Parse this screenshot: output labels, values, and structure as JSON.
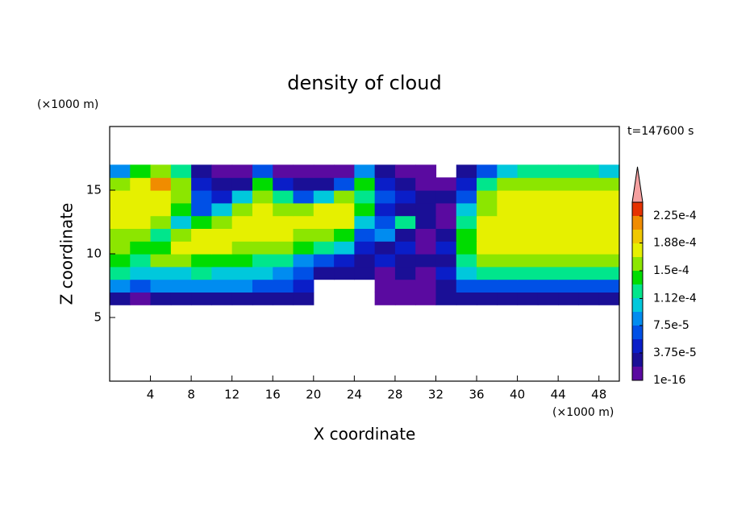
{
  "chart_data": {
    "type": "contour",
    "title": "density of cloud",
    "x_label": "X coordinate",
    "y_label": "Z coordinate",
    "x_unit": "(×1000 m)",
    "y_unit": "(×1000 m)",
    "annotation": "t=147600 s",
    "xlim": [
      0,
      50
    ],
    "ylim": [
      0,
      20
    ],
    "xticks": [
      4,
      8,
      12,
      16,
      20,
      24,
      28,
      32,
      36,
      40,
      44,
      48
    ],
    "yticks": [
      5,
      10,
      15
    ],
    "x": [
      1,
      3,
      5,
      7,
      9,
      11,
      13,
      15,
      17,
      19,
      21,
      23,
      25,
      27,
      29,
      31,
      33,
      35,
      37,
      39,
      41,
      43,
      45,
      47,
      49
    ],
    "y": [
      6.5,
      7.5,
      8.5,
      9.5,
      10.5,
      11.5,
      12.5,
      13.5,
      14.5,
      15.5,
      16.5
    ],
    "values": [
      [
        2.5e-05,
        1e-05,
        2.5e-05,
        2.5e-05,
        2.5e-05,
        2.5e-05,
        2.5e-05,
        2.5e-05,
        2.5e-05,
        2.5e-05,
        null,
        null,
        null,
        1e-05,
        1e-05,
        1e-05,
        2.5e-05,
        2.5e-05,
        2.5e-05,
        2.5e-05,
        2.5e-05,
        2.5e-05,
        2.5e-05,
        2.5e-05,
        2.5e-05
      ],
      [
        8e-05,
        6e-05,
        8e-05,
        8e-05,
        8e-05,
        8e-05,
        8e-05,
        6e-05,
        6e-05,
        4.5e-05,
        null,
        null,
        null,
        1e-05,
        1e-05,
        1e-05,
        2.5e-05,
        6e-05,
        6e-05,
        6e-05,
        6e-05,
        6e-05,
        6e-05,
        6e-05,
        6e-05
      ],
      [
        0.00012,
        0.0001,
        0.0001,
        0.0001,
        0.00012,
        0.0001,
        0.0001,
        0.0001,
        8e-05,
        6e-05,
        2.5e-05,
        2.5e-05,
        2.5e-05,
        1e-05,
        2.5e-05,
        1e-05,
        4.5e-05,
        0.0001,
        0.00012,
        0.00012,
        0.00012,
        0.00012,
        0.00012,
        0.00012,
        0.00012
      ],
      [
        0.00014,
        0.00012,
        0.00016,
        0.00016,
        0.00014,
        0.00014,
        0.00014,
        0.00012,
        0.00012,
        8e-05,
        6e-05,
        4.5e-05,
        2.5e-05,
        4.5e-05,
        2.5e-05,
        2.5e-05,
        2.5e-05,
        0.00012,
        0.00016,
        0.00016,
        0.00016,
        0.00016,
        0.00016,
        0.00016,
        0.00016
      ],
      [
        0.00016,
        0.00014,
        0.00014,
        0.000175,
        0.000175,
        0.000175,
        0.00016,
        0.00016,
        0.00016,
        0.00014,
        0.00012,
        0.0001,
        4.5e-05,
        2.5e-05,
        4.5e-05,
        1e-05,
        4.5e-05,
        0.00014,
        0.000175,
        0.000175,
        0.000175,
        0.000175,
        0.000175,
        0.000175,
        0.000175
      ],
      [
        0.00016,
        0.00016,
        0.00012,
        0.00016,
        0.000175,
        0.000175,
        0.000175,
        0.000175,
        0.000175,
        0.00016,
        0.00016,
        0.00014,
        6e-05,
        8e-05,
        2.5e-05,
        1e-05,
        2.5e-05,
        0.00014,
        0.000175,
        0.000175,
        0.000175,
        0.000175,
        0.000175,
        0.000175,
        0.000175
      ],
      [
        0.000175,
        0.000175,
        0.00016,
        0.0001,
        0.00014,
        0.00016,
        0.000175,
        0.000175,
        0.000175,
        0.000175,
        0.000175,
        0.000175,
        0.0001,
        6e-05,
        0.00012,
        2.5e-05,
        1e-05,
        0.00012,
        0.000175,
        0.000175,
        0.000175,
        0.000175,
        0.000175,
        0.000175,
        0.000175
      ],
      [
        0.000175,
        0.000175,
        0.000175,
        0.00014,
        6e-05,
        0.0001,
        0.00016,
        0.000175,
        0.00016,
        0.00016,
        0.000175,
        0.000175,
        0.00014,
        4.5e-05,
        2.5e-05,
        2.5e-05,
        1e-05,
        0.0001,
        0.00016,
        0.000175,
        0.000175,
        0.000175,
        0.000175,
        0.000175,
        0.000175
      ],
      [
        0.000175,
        0.000175,
        0.000175,
        0.00016,
        6e-05,
        4.5e-05,
        0.0001,
        0.00016,
        0.00012,
        6e-05,
        0.0001,
        0.00016,
        0.00012,
        6e-05,
        4.5e-05,
        2.5e-05,
        2.5e-05,
        6e-05,
        0.00016,
        0.000175,
        0.000175,
        0.000175,
        0.000175,
        0.000175,
        0.000175
      ],
      [
        0.00016,
        0.000175,
        0.00021,
        0.00016,
        4.5e-05,
        2.5e-05,
        2.5e-05,
        0.00014,
        4.5e-05,
        2.5e-05,
        2.5e-05,
        6e-05,
        0.00014,
        4.5e-05,
        2.5e-05,
        1e-05,
        1e-05,
        4.5e-05,
        0.00012,
        0.00016,
        0.00016,
        0.00016,
        0.00016,
        0.00016,
        0.00016
      ],
      [
        8e-05,
        0.00014,
        0.00016,
        0.00012,
        2.5e-05,
        1e-05,
        1e-05,
        6e-05,
        1e-05,
        1e-05,
        1e-05,
        1e-05,
        8e-05,
        2.5e-05,
        1e-05,
        1e-05,
        null,
        2.5e-05,
        6e-05,
        0.0001,
        0.00012,
        0.00012,
        0.00012,
        0.00012,
        0.0001
      ]
    ],
    "colorbar": {
      "levels": [
        1e-16,
        1.875e-05,
        3.75e-05,
        5.625e-05,
        7.5e-05,
        9.375e-05,
        0.0001125,
        0.00013125,
        0.00015,
        0.00016875,
        0.0001875,
        0.00020625,
        0.000225,
        0.00024375
      ],
      "colors": [
        "#5a0aa0",
        "#1a0f96",
        "#0a1ec8",
        "#0050e6",
        "#008cf0",
        "#00c8dc",
        "#00e68c",
        "#00dc00",
        "#8ce600",
        "#e6f000",
        "#f0c800",
        "#f08c00",
        "#e63200"
      ],
      "extend_color": "#f5a0a0",
      "ticks": [
        1e-16,
        {
          "value": 3.75e-05,
          "label": "3.75e-5"
        },
        {
          "value": 7.5e-05,
          "label": "7.5e-5"
        },
        {
          "value": 0.000112,
          "label": "1.12e-4"
        },
        {
          "value": 0.00015,
          "label": "1.5e-4"
        },
        {
          "value": 0.000188,
          "label": "1.88e-4"
        },
        {
          "value": 0.000225,
          "label": "2.25e-4"
        }
      ]
    }
  }
}
